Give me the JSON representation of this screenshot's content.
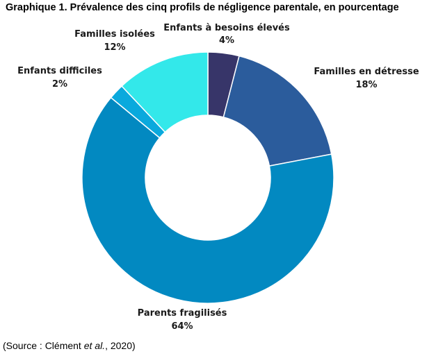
{
  "title": "Graphique 1. Prévalence des cinq profils de négligence parentale, en pourcentage",
  "source": {
    "prefix": "(Source : Clément ",
    "italic": "et al.",
    "suffix": ", 2020)"
  },
  "chart_data": {
    "type": "pie",
    "donut": true,
    "title": "Graphique 1. Prévalence des cinq profils de négligence parentale, en pourcentage",
    "unit": "%",
    "slices": [
      {
        "label": "Enfants à besoins élevés",
        "value": 4,
        "display": "4%",
        "color": "#373569"
      },
      {
        "label": "Familles en détresse",
        "value": 18,
        "display": "18%",
        "color": "#2b5c9c"
      },
      {
        "label": "Parents fragilisés",
        "value": 64,
        "display": "64%",
        "color": "#0289c1"
      },
      {
        "label": "Enfants difficiles",
        "value": 2,
        "display": "2%",
        "color": "#0aa9dd"
      },
      {
        "label": "Familles isolées",
        "value": 12,
        "display": "12%",
        "color": "#33e8ea"
      }
    ]
  }
}
